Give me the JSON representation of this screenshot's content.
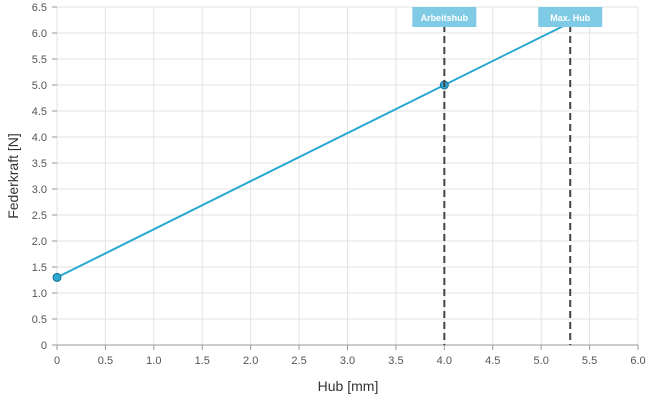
{
  "chart_data": {
    "type": "line",
    "xlabel": "Hub [mm]",
    "ylabel": "Federkraft [N]",
    "xlim": [
      0,
      6.0
    ],
    "ylim": [
      0,
      6.5
    ],
    "x_ticks": [
      "0",
      "0.5",
      "1.0",
      "1.5",
      "2.0",
      "2.5",
      "3.0",
      "3.5",
      "4.0",
      "4.5",
      "5.0",
      "5.5",
      "6.0"
    ],
    "y_ticks": [
      "0",
      "0.5",
      "1.0",
      "1.5",
      "2.0",
      "2.5",
      "3.0",
      "3.5",
      "4.0",
      "4.5",
      "5.0",
      "5.5",
      "6.0",
      "6.5"
    ],
    "grid": true,
    "series": [
      {
        "color": "#2aa8d2",
        "points": [
          {
            "x": 0,
            "y": 1.3
          },
          {
            "x": 4.0,
            "y": 5.0
          },
          {
            "x": 5.3,
            "y": 6.2
          }
        ]
      }
    ],
    "markers": [
      {
        "label": "Arbeitshub",
        "x": 4.0
      },
      {
        "label": "Max. Hub",
        "x": 5.3
      }
    ],
    "colors": {
      "line": "#2aa8d2",
      "grid": "#e3e3e3",
      "marker_line": "#444444",
      "marker_label_bg": "#7fcbe6"
    }
  }
}
